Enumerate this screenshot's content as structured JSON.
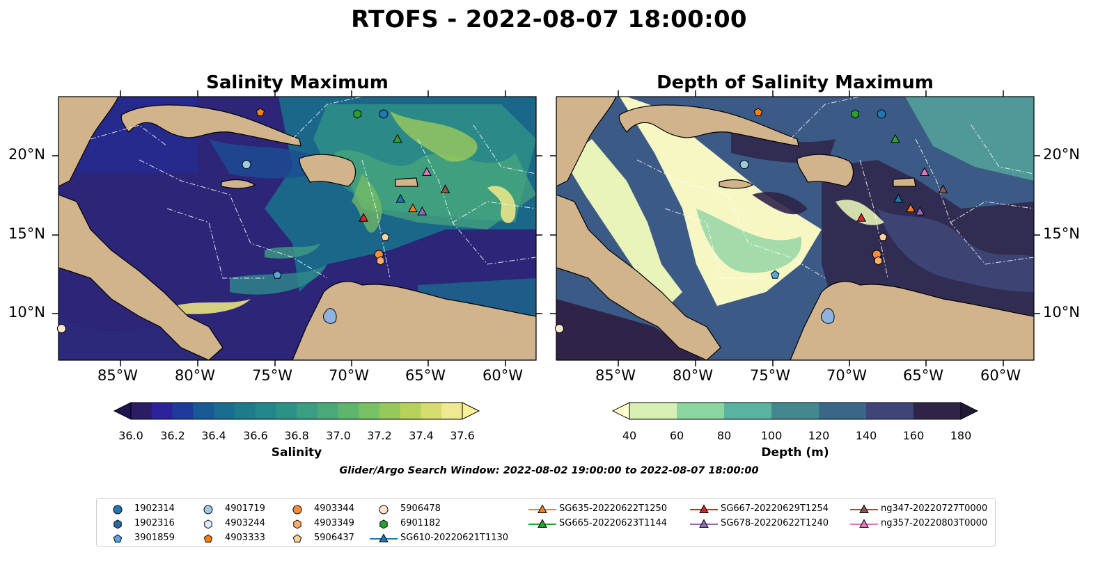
{
  "title": "RTOFS - 2022-08-07 18:00:00",
  "panels": [
    {
      "title": "Salinity Maximum",
      "colorbar_label": "Salinity",
      "colorbar_ticks": [
        "36.0",
        "36.2",
        "36.4",
        "36.6",
        "36.8",
        "37.0",
        "37.2",
        "37.4",
        "37.6"
      ],
      "colors": [
        "#2b1c63",
        "#2a239b",
        "#1f3a9a",
        "#175a96",
        "#176e8f",
        "#1b7c8c",
        "#21878a",
        "#2b9288",
        "#3a9e82",
        "#4aa979",
        "#5db56e",
        "#78c064",
        "#97c95a",
        "#b8d15a",
        "#d6dd6e",
        "#efe98f"
      ]
    },
    {
      "title": "Depth of Salinity Maximum",
      "colorbar_label": "Depth (m)",
      "colorbar_ticks": [
        "40",
        "60",
        "80",
        "100",
        "120",
        "140",
        "160",
        "180"
      ],
      "colors": [
        "#d8efb4",
        "#8bd5a0",
        "#58b3a0",
        "#43878f",
        "#3a6688",
        "#3f4677",
        "#2f2448"
      ]
    }
  ],
  "axes": {
    "lon_ticks": [
      "85°W",
      "80°W",
      "75°W",
      "70°W",
      "65°W",
      "60°W"
    ],
    "lat_ticks": [
      "20°N",
      "15°N",
      "10°N"
    ]
  },
  "search_window": "Glider/Argo Search Window: 2022-08-02 19:00:00 to 2022-08-07 18:00:00",
  "land_color": "#d2b48c",
  "lake_color": "#8fb3e0",
  "observations": [
    {
      "label": "1902314",
      "marker": "circle",
      "color": "#1f77b4",
      "lon": -67.9,
      "lat": 22.6
    },
    {
      "label": "1902316",
      "marker": "hexagon",
      "color": "#2a6aa8",
      "lon": null,
      "lat": null
    },
    {
      "label": "3901859",
      "marker": "pentagon",
      "color": "#5aa5e0",
      "lon": -74.8,
      "lat": 12.4
    },
    {
      "label": "4901719",
      "marker": "circle",
      "color": "#9ecae1",
      "lon": -76.8,
      "lat": 19.4
    },
    {
      "label": "4903244",
      "marker": "hexagon",
      "color": "#deebf7",
      "lon": null,
      "lat": null
    },
    {
      "label": "4903333",
      "marker": "pentagon",
      "color": "#fd7f0e",
      "lon": -75.9,
      "lat": 22.7
    },
    {
      "label": "4903344",
      "marker": "circle",
      "color": "#fd8d3c",
      "lon": -68.2,
      "lat": 13.7
    },
    {
      "label": "4903349",
      "marker": "hexagon",
      "color": "#fdae6b",
      "lon": -68.1,
      "lat": 13.3
    },
    {
      "label": "5906437",
      "marker": "pentagon",
      "color": "#fdd0a2",
      "lon": -67.8,
      "lat": 14.8
    },
    {
      "label": "5906478",
      "marker": "circle",
      "color": "#fee6ce",
      "lon": -88.8,
      "lat": 9.0
    },
    {
      "label": "6901182",
      "marker": "hexagon",
      "color": "#2ca02c",
      "lon": -69.6,
      "lat": 22.6
    },
    {
      "label": "SG610-20220621T1130",
      "marker": "triangle",
      "color": "#1f77b4",
      "lon": -66.8,
      "lat": 17.2
    },
    {
      "label": "SG635-20220622T1250",
      "marker": "triangle",
      "color": "#ff7f0e",
      "lon": -66.0,
      "lat": 16.6
    },
    {
      "label": "SG665-20220623T1144",
      "marker": "triangle",
      "color": "#2ca02c",
      "lon": -67.0,
      "lat": 21.0
    },
    {
      "label": "SG667-20220629T1254",
      "marker": "triangle",
      "color": "#d62728",
      "lon": -69.2,
      "lat": 16.0
    },
    {
      "label": "SG678-20220622T1240",
      "marker": "triangle",
      "color": "#9467bd",
      "lon": -65.4,
      "lat": 16.4
    },
    {
      "label": "ng347-20220727T0000",
      "marker": "triangle",
      "color": "#8c564b",
      "lon": -63.9,
      "lat": 17.8
    },
    {
      "label": "ng357-20220803T0000",
      "marker": "triangle",
      "color": "#e377c2",
      "lon": -65.1,
      "lat": 18.9
    }
  ]
}
